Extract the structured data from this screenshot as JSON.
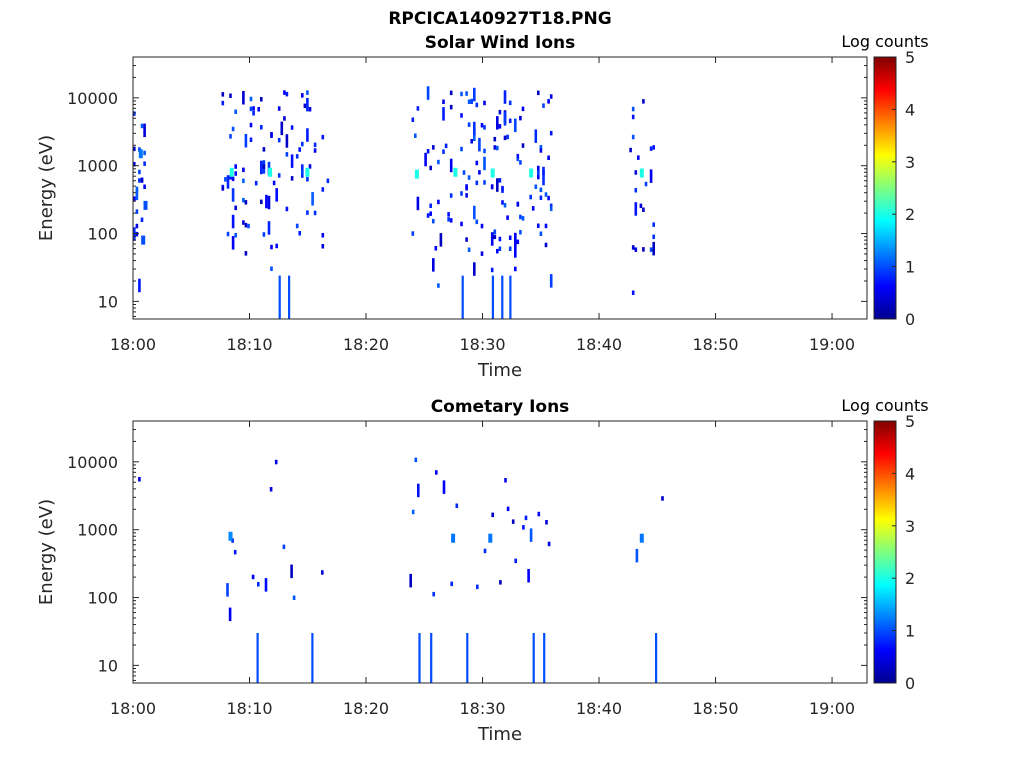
{
  "figure": {
    "title": "RPCICA140927T18.PNG"
  },
  "colormap": "jet",
  "chart_data": [
    {
      "type": "heatmap",
      "title": "Solar Wind Ions",
      "xlabel": "Time",
      "ylabel": "Energy (eV)",
      "xlim_minutes": [
        0,
        63
      ],
      "x_ticks": [
        "18:00",
        "18:10",
        "18:20",
        "18:30",
        "18:40",
        "18:50",
        "19:00"
      ],
      "y_scale": "log",
      "ylim": [
        5.5,
        40000
      ],
      "y_ticks": [
        "10",
        "100",
        "1000",
        "10000"
      ],
      "colorbar": {
        "label": "Log counts",
        "range": [
          0,
          5
        ],
        "ticks": [
          "0",
          "1",
          "2",
          "3",
          "4",
          "5"
        ]
      },
      "activity_windows_minutes": [
        [
          0.0,
          1.2
        ],
        [
          7.6,
          16.8
        ],
        [
          23.9,
          35.8
        ],
        [
          42.6,
          45.6
        ]
      ],
      "features": [
        {
          "t": 0.5,
          "e": 1500,
          "v": 1.2
        },
        {
          "t": 0.9,
          "e": 260,
          "v": 1.0
        },
        {
          "t": 0.7,
          "e": 80,
          "v": 1.0
        },
        {
          "t": 8.3,
          "e": 800,
          "v": 2.0
        },
        {
          "t": 11.6,
          "e": 800,
          "v": 2.0
        },
        {
          "t": 14.8,
          "e": 800,
          "v": 2.0
        },
        {
          "t": 24.2,
          "e": 750,
          "v": 2.0
        },
        {
          "t": 27.5,
          "e": 800,
          "v": 2.0
        },
        {
          "t": 30.7,
          "e": 780,
          "v": 2.0
        },
        {
          "t": 34.0,
          "e": 780,
          "v": 2.0
        },
        {
          "t": 43.5,
          "e": 780,
          "v": 2.0
        },
        {
          "t": 12.5,
          "e": 12,
          "v": 1.0
        },
        {
          "t": 13.3,
          "e": 12,
          "v": 1.0
        },
        {
          "t": 28.2,
          "e": 12,
          "v": 1.0
        },
        {
          "t": 30.8,
          "e": 12,
          "v": 1.0
        },
        {
          "t": 31.6,
          "e": 12,
          "v": 1.0
        },
        {
          "t": 32.3,
          "e": 12,
          "v": 1.0
        }
      ]
    },
    {
      "type": "heatmap",
      "title": "Cometary Ions",
      "xlabel": "Time",
      "ylabel": "Energy (eV)",
      "xlim_minutes": [
        0,
        63
      ],
      "x_ticks": [
        "18:00",
        "18:10",
        "18:20",
        "18:30",
        "18:40",
        "18:50",
        "19:00"
      ],
      "y_scale": "log",
      "ylim": [
        5.5,
        40000
      ],
      "y_ticks": [
        "10",
        "100",
        "1000",
        "10000"
      ],
      "colorbar": {
        "label": "Log counts",
        "range": [
          0,
          5
        ],
        "ticks": [
          "0",
          "1",
          "2",
          "3",
          "4",
          "5"
        ]
      },
      "activity_windows_minutes": [
        [
          0.0,
          0.8
        ],
        [
          8.0,
          17.0
        ],
        [
          23.5,
          35.9
        ],
        [
          42.7,
          45.7
        ]
      ],
      "features": [
        {
          "t": 8.2,
          "e": 800,
          "v": 1.3
        },
        {
          "t": 10.6,
          "e": 15,
          "v": 1.0
        },
        {
          "t": 15.3,
          "e": 15,
          "v": 1.0
        },
        {
          "t": 24.5,
          "e": 15,
          "v": 1.0
        },
        {
          "t": 25.5,
          "e": 15,
          "v": 1.0
        },
        {
          "t": 28.6,
          "e": 15,
          "v": 1.0
        },
        {
          "t": 34.3,
          "e": 15,
          "v": 1.0
        },
        {
          "t": 35.2,
          "e": 15,
          "v": 1.0
        },
        {
          "t": 44.8,
          "e": 15,
          "v": 1.0
        },
        {
          "t": 27.3,
          "e": 750,
          "v": 1.2
        },
        {
          "t": 30.5,
          "e": 750,
          "v": 1.2
        },
        {
          "t": 43.5,
          "e": 750,
          "v": 1.2
        }
      ]
    }
  ]
}
